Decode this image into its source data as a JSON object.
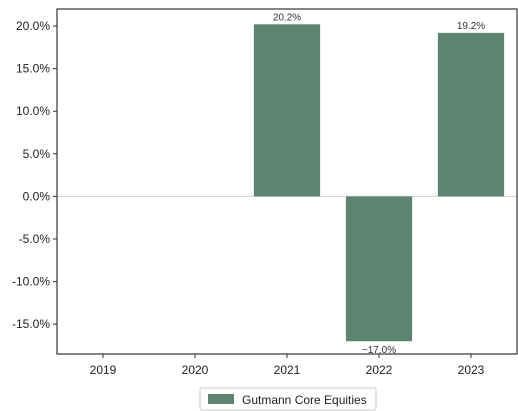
{
  "chart_data": {
    "type": "bar",
    "categories": [
      "2019",
      "2020",
      "2021",
      "2022",
      "2023"
    ],
    "series": [
      {
        "name": "Gutmann Core Equities",
        "values": [
          null,
          null,
          20.2,
          -17.0,
          19.2
        ],
        "data_labels": [
          "",
          "",
          "20.2%",
          "−17.0%",
          "19.2%"
        ]
      }
    ],
    "yticks": [
      20.0,
      15.0,
      10.0,
      5.0,
      0.0,
      -5.0,
      -10.0,
      -15.0
    ],
    "ytick_labels": [
      "20.0%",
      "15.0%",
      "10.0%",
      "5.0%",
      "0.0%",
      "-5.0%",
      "-10.0%",
      "-15.0%"
    ],
    "ylim": [
      -18.5,
      22.0
    ],
    "title": "",
    "xlabel": "",
    "ylabel": "",
    "grid": false,
    "legend_position": "bottom-center",
    "colors": {
      "bar": "#5c8470",
      "axis": "#333333",
      "zero_line": "#d0d0d0"
    }
  }
}
